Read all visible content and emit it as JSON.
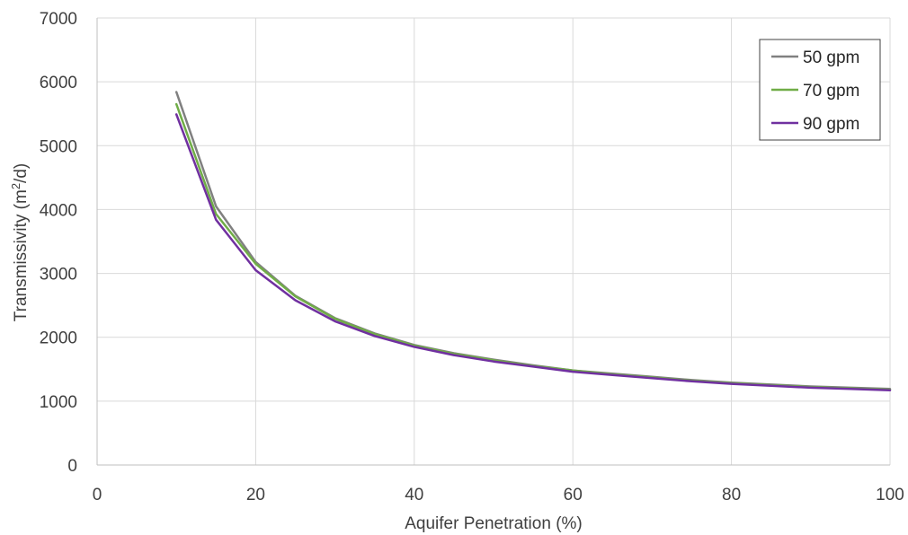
{
  "chart_data": {
    "type": "line",
    "title": "",
    "xlabel": "Aquifer Penetration (%)",
    "ylabel_prefix": "Transmissivity (m",
    "ylabel_sup": "2",
    "ylabel_suffix": "/d)",
    "xlim": [
      0,
      100
    ],
    "ylim": [
      0,
      7000
    ],
    "x_ticks": [
      0,
      20,
      40,
      60,
      80,
      100
    ],
    "y_ticks": [
      0,
      1000,
      2000,
      3000,
      4000,
      5000,
      6000,
      7000
    ],
    "grid": true,
    "legend_position": "top-right",
    "x": [
      10,
      15,
      20,
      25,
      30,
      35,
      40,
      45,
      50,
      55,
      60,
      65,
      70,
      75,
      80,
      85,
      90,
      95,
      100
    ],
    "series": [
      {
        "name": "50 gpm",
        "color": "#808080",
        "values": [
          5840,
          4050,
          3180,
          2650,
          2300,
          2060,
          1880,
          1750,
          1650,
          1560,
          1480,
          1430,
          1380,
          1330,
          1290,
          1260,
          1230,
          1210,
          1190
        ]
      },
      {
        "name": "70 gpm",
        "color": "#70ad47",
        "values": [
          5650,
          3930,
          3150,
          2640,
          2290,
          2050,
          1870,
          1740,
          1640,
          1550,
          1480,
          1420,
          1370,
          1320,
          1280,
          1250,
          1220,
          1200,
          1180
        ]
      },
      {
        "name": "90 gpm",
        "color": "#7030a0",
        "values": [
          5490,
          3840,
          3050,
          2580,
          2250,
          2020,
          1850,
          1720,
          1620,
          1540,
          1460,
          1410,
          1360,
          1310,
          1270,
          1240,
          1210,
          1190,
          1170
        ]
      }
    ]
  }
}
